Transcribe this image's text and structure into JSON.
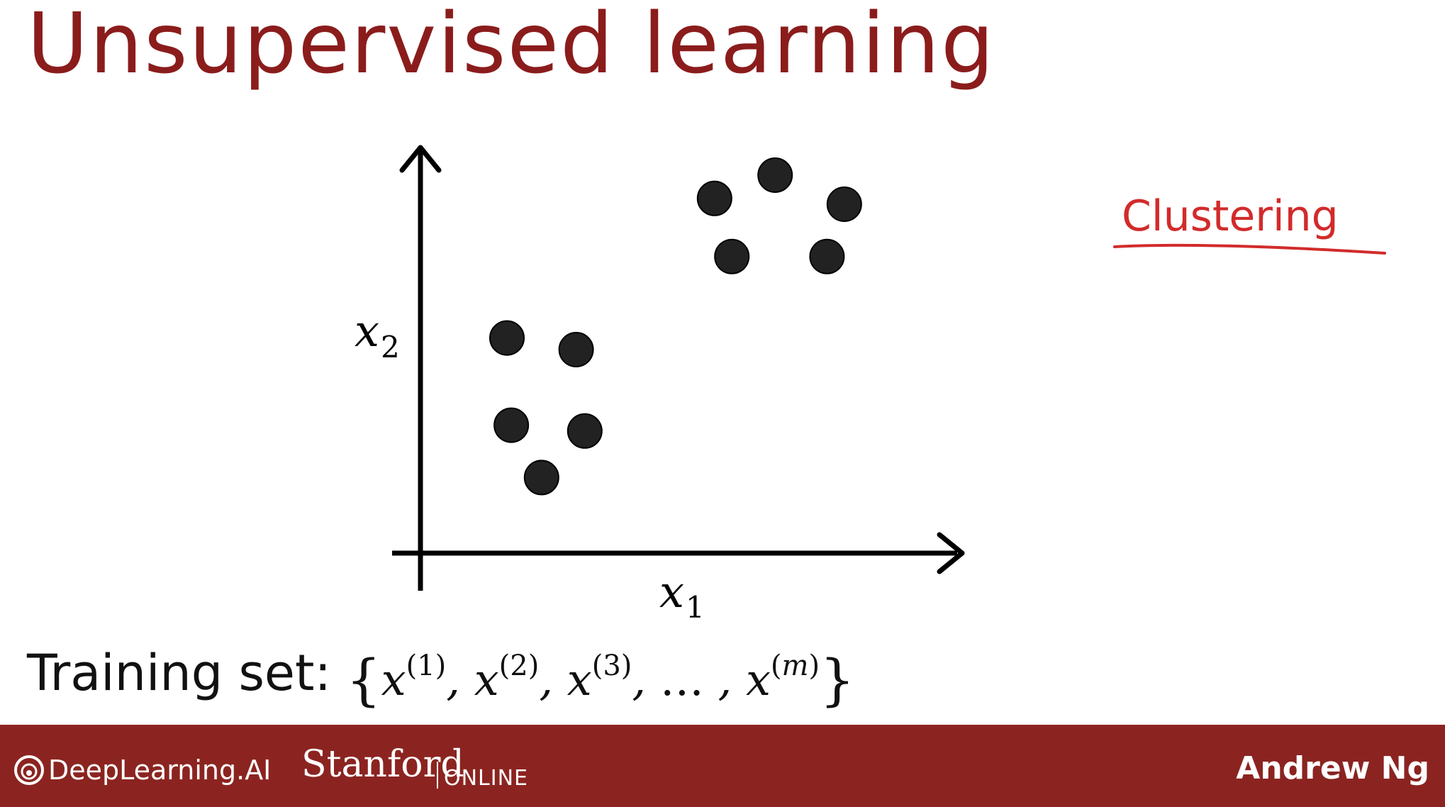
{
  "slide": {
    "title": "Unsupervised learning",
    "annotation": "Clustering",
    "training_label": "Training set:",
    "formula": {
      "open": "{",
      "x": "x",
      "sup1": "(1)",
      "sup2": "(2)",
      "sup3": "(3)",
      "ellipsis": "…",
      "supm": "m",
      "close": "}"
    }
  },
  "footer": {
    "deeplearning": "DeepLearning.AI",
    "stanford": "Stanford",
    "online": "ONLINE",
    "presenter": "Andrew Ng"
  },
  "colors": {
    "title": "#8b1c1c",
    "annotation": "#d22b2b",
    "footer_bg": "#8b2420",
    "points": "#222222"
  },
  "chart_data": {
    "type": "scatter",
    "xlabel": "x1",
    "ylabel": "x2",
    "axis_ticks": false,
    "grid": false,
    "x": [
      1.0,
      1.8,
      1.05,
      1.9,
      1.4,
      3.4,
      4.1,
      4.9,
      3.6,
      4.7
    ],
    "y": [
      3.7,
      3.5,
      2.2,
      2.1,
      1.3,
      6.1,
      6.5,
      6.0,
      5.1,
      5.1
    ]
  }
}
